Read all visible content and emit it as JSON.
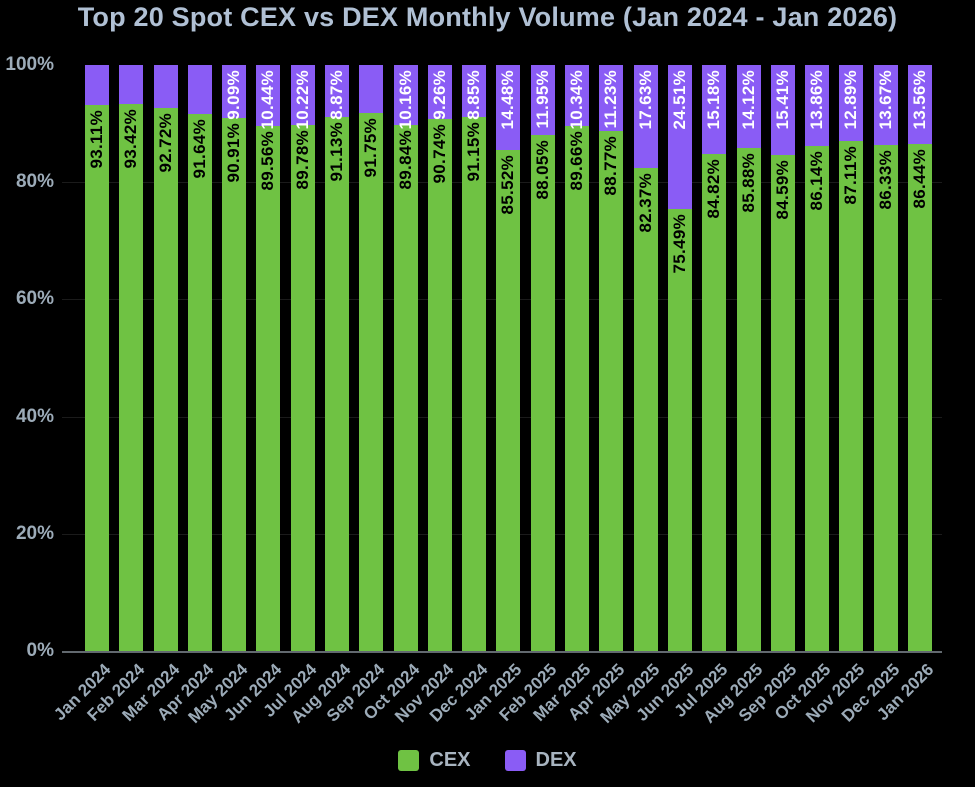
{
  "title": "Top 20 Spot CEX vs DEX Monthly Volume (Jan 2024 - Jan 2026)",
  "colors": {
    "background": "#000000",
    "cex": "#6fc243",
    "dex": "#8a5cf5",
    "title_text": "#b0c0d4",
    "axis_text": "#9cabb8",
    "legend_text": "#a8b4c0",
    "axis_line": "#62696f",
    "gridline": "#1b1b1b",
    "cex_bar_label_text": "#000000",
    "dex_bar_label_text": "#ffffff"
  },
  "legend": {
    "position": "bottom-center",
    "items": [
      {
        "label": "CEX",
        "color_key": "cex"
      },
      {
        "label": "DEX",
        "color_key": "dex"
      }
    ]
  },
  "chart_data": {
    "type": "bar",
    "stacked": true,
    "percent_stack_total": 100,
    "title": "Top 20 Spot CEX vs DEX Monthly Volume (Jan 2024 - Jan 2026)",
    "xlabel": "",
    "ylabel": "",
    "ylim": [
      0,
      100
    ],
    "yticks": [
      0,
      20,
      40,
      60,
      80,
      100
    ],
    "ytick_suffix": "%",
    "grid": "faint horizontal lines at 20, 40, 60, 80",
    "value_label_suffix": "%",
    "categories": [
      "Jan 2024",
      "Feb 2024",
      "Mar 2024",
      "Apr 2024",
      "May 2024",
      "Jun 2024",
      "Jul 2024",
      "Aug 2024",
      "Sep 2024",
      "Oct 2024",
      "Nov 2024",
      "Dec 2024",
      "Jan 2025",
      "Feb 2025",
      "Mar 2025",
      "Apr 2025",
      "May 2025",
      "Jun 2025",
      "Jul 2025",
      "Aug 2025",
      "Sep 2025",
      "Oct 2025",
      "Nov 2025",
      "Dec 2025",
      "Jan 2026"
    ],
    "series": [
      {
        "name": "CEX",
        "color_key": "cex",
        "values": [
          93.11,
          93.42,
          92.72,
          91.64,
          90.91,
          89.56,
          89.78,
          91.13,
          91.75,
          89.84,
          90.74,
          91.15,
          85.52,
          88.05,
          89.66,
          88.77,
          82.37,
          75.49,
          84.82,
          85.88,
          84.59,
          86.14,
          87.11,
          86.33,
          86.44
        ],
        "labels_visible": [
          true,
          true,
          true,
          true,
          true,
          true,
          true,
          true,
          true,
          true,
          true,
          true,
          true,
          true,
          true,
          true,
          true,
          true,
          true,
          true,
          true,
          true,
          true,
          true,
          true
        ]
      },
      {
        "name": "DEX",
        "color_key": "dex",
        "values": [
          6.89,
          6.58,
          7.28,
          8.36,
          9.09,
          10.44,
          10.22,
          8.87,
          8.25,
          10.16,
          9.26,
          8.85,
          14.48,
          11.95,
          10.34,
          11.23,
          17.63,
          24.51,
          15.18,
          14.12,
          15.41,
          13.86,
          12.89,
          13.67,
          13.56
        ],
        "labels_visible": [
          false,
          false,
          false,
          false,
          true,
          true,
          true,
          true,
          false,
          true,
          true,
          true,
          true,
          true,
          true,
          true,
          true,
          true,
          true,
          true,
          true,
          true,
          true,
          true,
          true
        ]
      }
    ]
  }
}
